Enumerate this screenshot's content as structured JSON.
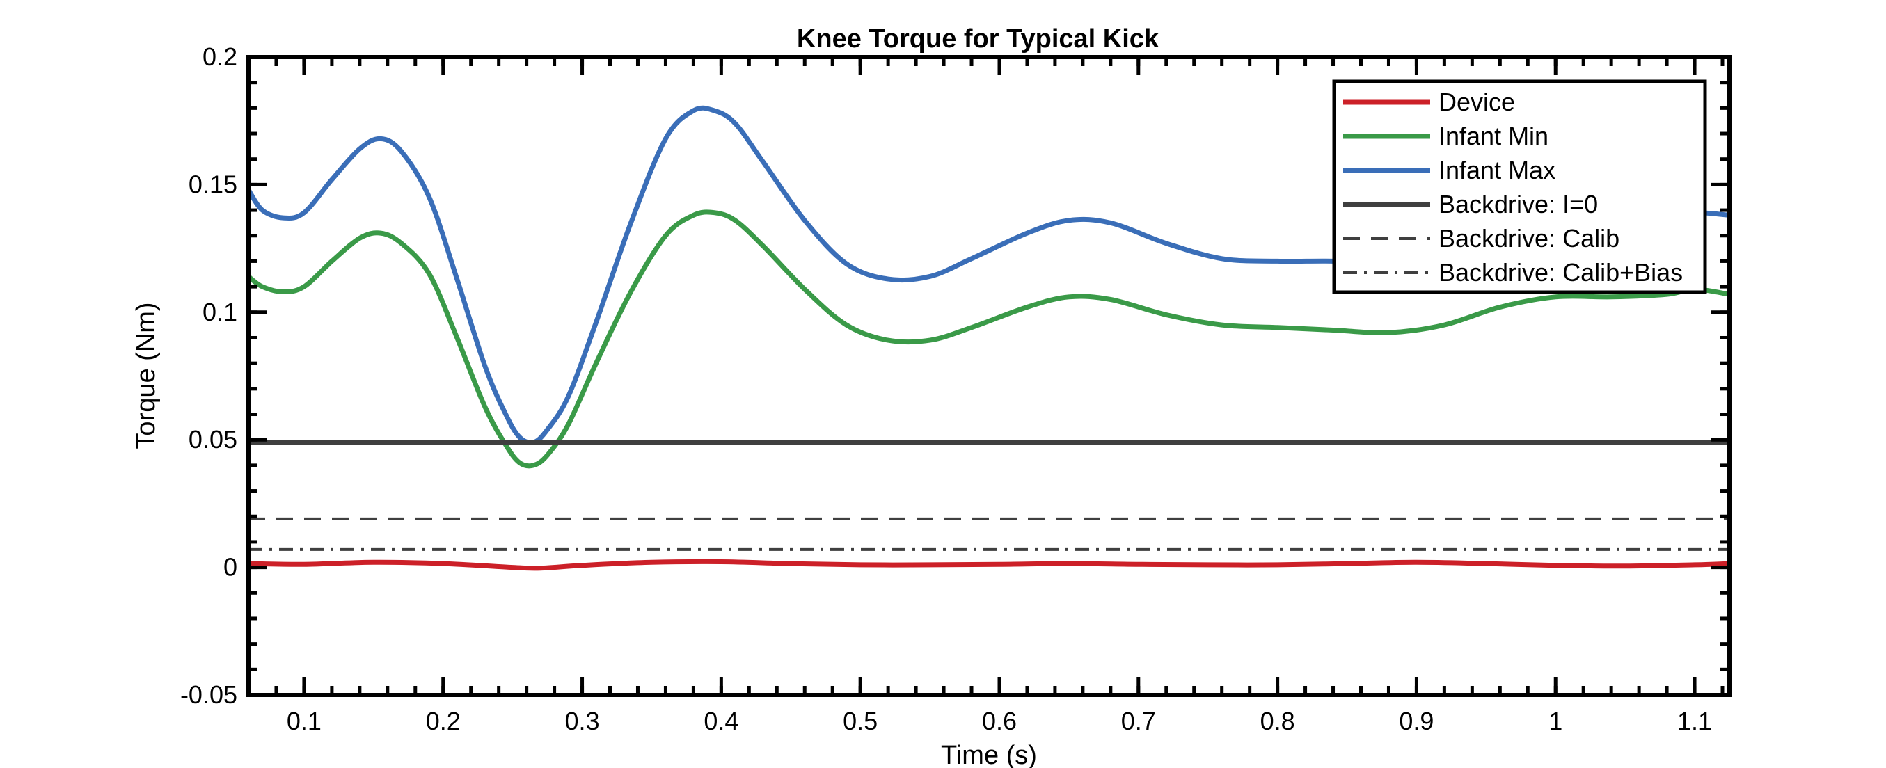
{
  "chart_data": {
    "type": "line",
    "title": "Knee Torque for Typical Kick",
    "xlabel": "Time (s)",
    "ylabel": "Torque (Nm)",
    "xlim": [
      0.06,
      1.125
    ],
    "ylim": [
      -0.05,
      0.2
    ],
    "xticks": [
      0.1,
      0.2,
      0.3,
      0.4,
      0.5,
      0.6,
      0.7,
      0.8,
      0.9,
      1,
      1.1
    ],
    "xtick_labels": [
      "0.1",
      "0.2",
      "0.3",
      "0.4",
      "0.5",
      "0.6",
      "0.7",
      "0.8",
      "0.9",
      "1",
      "1.1"
    ],
    "yticks": [
      -0.05,
      0,
      0.05,
      0.1,
      0.15,
      0.2
    ],
    "ytick_labels": [
      "-0.05",
      "0",
      "0.05",
      "0.1",
      "0.15",
      "0.2"
    ],
    "grid": false,
    "legend_position": "top-right",
    "series": [
      {
        "name": "Device",
        "color": "#cc2028",
        "style": "solid",
        "x": [
          0.06,
          0.1,
          0.15,
          0.2,
          0.25,
          0.27,
          0.3,
          0.35,
          0.4,
          0.45,
          0.5,
          0.55,
          0.6,
          0.65,
          0.7,
          0.75,
          0.8,
          0.85,
          0.9,
          0.95,
          1.0,
          1.05,
          1.1,
          1.125
        ],
        "y": [
          0.0015,
          0.0012,
          0.002,
          0.0015,
          0.0,
          -0.0003,
          0.0008,
          0.002,
          0.0022,
          0.0015,
          0.001,
          0.001,
          0.0012,
          0.0015,
          0.0012,
          0.001,
          0.001,
          0.0015,
          0.002,
          0.0015,
          0.0008,
          0.0005,
          0.001,
          0.0015
        ]
      },
      {
        "name": "Infant Min",
        "color": "#3a9a48",
        "style": "solid",
        "x": [
          0.06,
          0.07,
          0.085,
          0.1,
          0.12,
          0.14,
          0.155,
          0.17,
          0.19,
          0.21,
          0.23,
          0.245,
          0.255,
          0.265,
          0.275,
          0.29,
          0.31,
          0.335,
          0.36,
          0.38,
          0.395,
          0.41,
          0.43,
          0.46,
          0.49,
          0.52,
          0.55,
          0.58,
          0.62,
          0.65,
          0.68,
          0.72,
          0.76,
          0.8,
          0.84,
          0.88,
          0.92,
          0.96,
          1.0,
          1.04,
          1.08,
          1.1,
          1.125
        ],
        "y": [
          0.114,
          0.11,
          0.108,
          0.11,
          0.12,
          0.129,
          0.131,
          0.127,
          0.115,
          0.09,
          0.063,
          0.048,
          0.041,
          0.04,
          0.044,
          0.056,
          0.08,
          0.108,
          0.13,
          0.138,
          0.139,
          0.136,
          0.126,
          0.109,
          0.095,
          0.089,
          0.089,
          0.094,
          0.102,
          0.106,
          0.105,
          0.099,
          0.095,
          0.094,
          0.093,
          0.092,
          0.095,
          0.102,
          0.106,
          0.106,
          0.107,
          0.109,
          0.107
        ]
      },
      {
        "name": "Infant Max",
        "color": "#3a6eb8",
        "style": "solid",
        "x": [
          0.06,
          0.07,
          0.085,
          0.1,
          0.12,
          0.14,
          0.155,
          0.17,
          0.19,
          0.21,
          0.23,
          0.245,
          0.255,
          0.265,
          0.275,
          0.29,
          0.31,
          0.335,
          0.36,
          0.38,
          0.395,
          0.41,
          0.43,
          0.46,
          0.49,
          0.52,
          0.55,
          0.58,
          0.62,
          0.65,
          0.68,
          0.72,
          0.76,
          0.8,
          0.84,
          0.88,
          0.92,
          0.96,
          1.0,
          1.04,
          1.08,
          1.1,
          1.125
        ],
        "y": [
          0.148,
          0.14,
          0.137,
          0.139,
          0.152,
          0.164,
          0.168,
          0.163,
          0.145,
          0.113,
          0.079,
          0.06,
          0.051,
          0.049,
          0.054,
          0.067,
          0.096,
          0.135,
          0.168,
          0.179,
          0.179,
          0.174,
          0.159,
          0.136,
          0.119,
          0.113,
          0.114,
          0.121,
          0.131,
          0.136,
          0.135,
          0.127,
          0.121,
          0.12,
          0.12,
          0.119,
          0.122,
          0.13,
          0.135,
          0.136,
          0.137,
          0.139,
          0.138
        ]
      },
      {
        "name": "Backdrive: I=0",
        "color": "#3f3f3f",
        "style": "solid",
        "x": [
          0.06,
          1.125
        ],
        "y": [
          0.049,
          0.049
        ]
      },
      {
        "name": "Backdrive: Calib",
        "color": "#3f3f3f",
        "style": "dashed",
        "x": [
          0.06,
          1.125
        ],
        "y": [
          0.019,
          0.019
        ]
      },
      {
        "name": "Backdrive: Calib+Bias",
        "color": "#3f3f3f",
        "style": "dashdot",
        "x": [
          0.06,
          1.125
        ],
        "y": [
          0.007,
          0.007
        ]
      }
    ]
  }
}
